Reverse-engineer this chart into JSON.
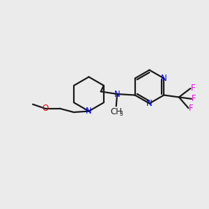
{
  "bg_color": "#ebebeb",
  "bond_color": "#1a1a1a",
  "N_color": "#0000ee",
  "O_color": "#dd0000",
  "F_color": "#ee00ee",
  "line_width": 1.6,
  "font_size": 8.5,
  "fig_size": [
    3.0,
    3.0
  ],
  "dpi": 100,
  "xlim": [
    0,
    10
  ],
  "ylim": [
    0,
    10
  ]
}
